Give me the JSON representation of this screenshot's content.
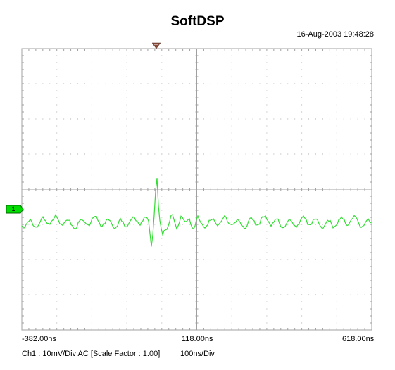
{
  "app": {
    "title": "SoftDSP",
    "timestamp": "16-Aug-2003 19:48:28"
  },
  "axis": {
    "x_left_label": "-382.00ns",
    "x_mid_label": "118.00ns",
    "x_right_label": "618.00ns"
  },
  "channel": {
    "marker": "1",
    "color": "#33dd33",
    "settings": "Ch1 : 10mV/Div  AC  [Scale Factor : 1.00]",
    "timebase": "100ns/Div"
  },
  "trigger": {
    "color": "#8a4a3a"
  },
  "grid": {
    "divisions_x": 10,
    "divisions_y": 8
  }
}
